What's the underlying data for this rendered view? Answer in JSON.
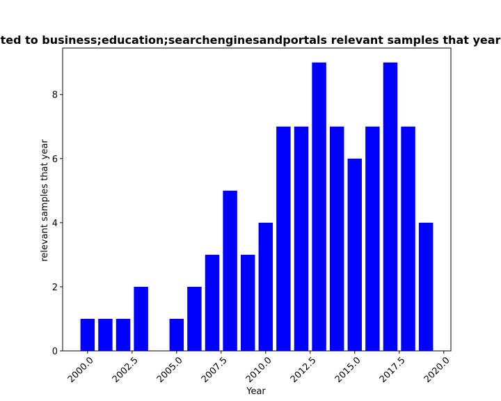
{
  "chart_data": {
    "type": "bar",
    "title": "ted to business;education;searchenginesandportals relevant samples that year",
    "xlabel": "Year",
    "ylabel": "relevant samples that year",
    "x": [
      2000,
      2001,
      2002,
      2003,
      2005,
      2006,
      2007,
      2008,
      2009,
      2010,
      2011,
      2012,
      2013,
      2014,
      2015,
      2016,
      2017,
      2018,
      2019
    ],
    "values": [
      1,
      1,
      1,
      2,
      1,
      2,
      3,
      5,
      3,
      4,
      7,
      7,
      9,
      7,
      6,
      7,
      9,
      7,
      4
    ],
    "bar_color": "#0000ff",
    "xlim": [
      1998.6,
      2020.4
    ],
    "ylim": [
      0,
      9.45
    ],
    "xticks": [
      "2000.0",
      "2002.5",
      "2005.0",
      "2007.5",
      "2010.0",
      "2012.5",
      "2015.0",
      "2017.5",
      "2020.0"
    ],
    "xtick_values": [
      2000,
      2002.5,
      2005,
      2007.5,
      2010,
      2012.5,
      2015,
      2017.5,
      2020
    ],
    "yticks": [
      "0",
      "2",
      "4",
      "6",
      "8"
    ],
    "ytick_values": [
      0,
      2,
      4,
      6,
      8
    ],
    "grid": false,
    "legend": "none"
  }
}
